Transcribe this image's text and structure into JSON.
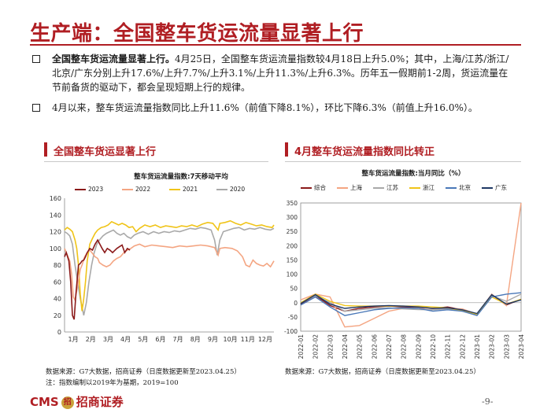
{
  "title": "生产端：全国整车货运流量显著上行",
  "bullets": [
    {
      "bold": "全国整车货运流量显著上行。",
      "text": "4月25日，全国整车货运流量指数较4月18日上升5.0%；其中，上海/江苏/浙江/北京/广东分别上升17.6%/上升7.7%/上升3.1%/上升11.3%/上升6.3%。历年五一假期前1-2周，货运流量在节前备货的驱动下，都会呈现短期上行的规律。"
    },
    {
      "bold": "",
      "text": "4月以来，整车货运流量指数同比上升11.6%（前值下降8.1%），环比下降6.3%（前值上升16.0%）。"
    }
  ],
  "left_panel": {
    "header": "全国整车货运显著上行",
    "source": "数据来源：G7大数据，招商证券（日度数据更新至2023.04.25）",
    "note": "注：指数编制以2019年为基期，2019=100"
  },
  "right_panel": {
    "header": "4月整车货运流量指数同比转正",
    "source": "数据来源：G7大数据，招商证券（日度数据更新至2023.04.25）"
  },
  "colors": {
    "accent": "#b01e23",
    "logo_gold": "#c9a13a"
  },
  "chart_data": [
    {
      "type": "line",
      "title": "整车货运流量指数:7天移动平均",
      "x_labels": [
        "1月",
        "2月",
        "3月",
        "4月",
        "5月",
        "6月",
        "7月",
        "8月",
        "9月",
        "10月",
        "11月",
        "12月"
      ],
      "ylim": [
        0,
        160
      ],
      "yticks": [
        0,
        20,
        40,
        60,
        80,
        100,
        120,
        140,
        160
      ],
      "series": [
        {
          "name": "2023",
          "color": "#8b1a1a",
          "values": [
            [
              0.0,
              90
            ],
            [
              0.1,
              95
            ],
            [
              0.25,
              85
            ],
            [
              0.35,
              60
            ],
            [
              0.45,
              20
            ],
            [
              0.55,
              15
            ],
            [
              0.65,
              45
            ],
            [
              0.8,
              80
            ],
            [
              0.9,
              82
            ],
            [
              1.0,
              85
            ],
            [
              1.1,
              86
            ],
            [
              1.2,
              90
            ],
            [
              1.3,
              95
            ],
            [
              1.45,
              100
            ],
            [
              1.6,
              98
            ],
            [
              1.75,
              105
            ],
            [
              1.9,
              110
            ],
            [
              2.0,
              106
            ],
            [
              2.15,
              100
            ],
            [
              2.3,
              95
            ],
            [
              2.45,
              100
            ],
            [
              2.6,
              98
            ],
            [
              2.75,
              95
            ],
            [
              2.85,
              97
            ],
            [
              3.0,
              100
            ],
            [
              3.15,
              102
            ],
            [
              3.3,
              104
            ],
            [
              3.45,
              95
            ],
            [
              3.6,
              100
            ],
            [
              3.75,
              98
            ]
          ]
        },
        {
          "name": "2022",
          "color": "#f4a582",
          "values": [
            [
              0.0,
              100
            ],
            [
              0.1,
              95
            ],
            [
              0.2,
              90
            ],
            [
              0.3,
              85
            ],
            [
              0.4,
              70
            ],
            [
              0.5,
              42
            ],
            [
              0.6,
              38
            ],
            [
              0.75,
              55
            ],
            [
              0.9,
              75
            ],
            [
              1.0,
              80
            ],
            [
              1.15,
              90
            ],
            [
              1.3,
              95
            ],
            [
              1.45,
              98
            ],
            [
              1.6,
              94
            ],
            [
              1.75,
              90
            ],
            [
              1.9,
              88
            ],
            [
              2.0,
              83
            ],
            [
              2.2,
              80
            ],
            [
              2.4,
              78
            ],
            [
              2.6,
              80
            ],
            [
              2.8,
              85
            ],
            [
              3.0,
              88
            ],
            [
              3.2,
              90
            ],
            [
              3.4,
              95
            ],
            [
              3.6,
              98
            ],
            [
              3.8,
              100
            ],
            [
              4.0,
              103
            ],
            [
              4.3,
              105
            ],
            [
              4.6,
              102
            ],
            [
              5.0,
              104
            ],
            [
              5.4,
              103
            ],
            [
              5.8,
              102
            ],
            [
              6.2,
              101
            ],
            [
              6.6,
              103
            ],
            [
              7.0,
              102
            ],
            [
              7.4,
              103
            ],
            [
              7.8,
              104
            ],
            [
              8.2,
              103
            ],
            [
              8.6,
              101
            ],
            [
              8.8,
              92
            ],
            [
              8.9,
              100
            ],
            [
              9.2,
              101
            ],
            [
              9.6,
              100
            ],
            [
              9.9,
              97
            ],
            [
              10.2,
              90
            ],
            [
              10.4,
              80
            ],
            [
              10.6,
              78
            ],
            [
              10.8,
              86
            ],
            [
              11.0,
              82
            ],
            [
              11.2,
              80
            ],
            [
              11.4,
              79
            ],
            [
              11.6,
              82
            ],
            [
              11.8,
              78
            ],
            [
              12.0,
              85
            ]
          ]
        },
        {
          "name": "2021",
          "color": "#f0c419",
          "values": [
            [
              0.0,
              122
            ],
            [
              0.15,
              125
            ],
            [
              0.3,
              123
            ],
            [
              0.45,
              120
            ],
            [
              0.6,
              110
            ],
            [
              0.7,
              100
            ],
            [
              0.8,
              80
            ],
            [
              0.9,
              45
            ],
            [
              1.0,
              25
            ],
            [
              1.1,
              40
            ],
            [
              1.2,
              60
            ],
            [
              1.3,
              85
            ],
            [
              1.45,
              105
            ],
            [
              1.6,
              112
            ],
            [
              1.75,
              118
            ],
            [
              1.9,
              122
            ],
            [
              2.1,
              125
            ],
            [
              2.3,
              126
            ],
            [
              2.5,
              128
            ],
            [
              2.7,
              132
            ],
            [
              2.9,
              130
            ],
            [
              3.1,
              128
            ],
            [
              3.3,
              130
            ],
            [
              3.5,
              128
            ],
            [
              3.7,
              125
            ],
            [
              3.9,
              126
            ],
            [
              4.1,
              120
            ],
            [
              4.3,
              124
            ],
            [
              4.6,
              128
            ],
            [
              4.9,
              126
            ],
            [
              5.2,
              128
            ],
            [
              5.5,
              125
            ],
            [
              5.8,
              127
            ],
            [
              6.1,
              126
            ],
            [
              6.4,
              125
            ],
            [
              6.7,
              127
            ],
            [
              7.0,
              126
            ],
            [
              7.3,
              128
            ],
            [
              7.6,
              126
            ],
            [
              7.9,
              129
            ],
            [
              8.2,
              131
            ],
            [
              8.5,
              130
            ],
            [
              8.8,
              122
            ],
            [
              8.9,
              130
            ],
            [
              9.2,
              131
            ],
            [
              9.5,
              133
            ],
            [
              9.8,
              130
            ],
            [
              10.1,
              128
            ],
            [
              10.4,
              131
            ],
            [
              10.7,
              129
            ],
            [
              11.0,
              127
            ],
            [
              11.3,
              128
            ],
            [
              11.6,
              126
            ],
            [
              11.9,
              125
            ],
            [
              12.0,
              128
            ]
          ]
        },
        {
          "name": "2020",
          "color": "#a9a9a9",
          "values": [
            [
              0.0,
              120
            ],
            [
              0.15,
              118
            ],
            [
              0.3,
              115
            ],
            [
              0.45,
              105
            ],
            [
              0.6,
              80
            ],
            [
              0.75,
              60
            ],
            [
              0.9,
              40
            ],
            [
              1.0,
              30
            ],
            [
              1.1,
              20
            ],
            [
              1.25,
              35
            ],
            [
              1.4,
              60
            ],
            [
              1.55,
              80
            ],
            [
              1.7,
              95
            ],
            [
              1.85,
              105
            ],
            [
              2.0,
              110
            ],
            [
              2.2,
              115
            ],
            [
              2.4,
              118
            ],
            [
              2.6,
              120
            ],
            [
              2.8,
              122
            ],
            [
              3.0,
              118
            ],
            [
              3.2,
              116
            ],
            [
              3.4,
              118
            ],
            [
              3.6,
              114
            ],
            [
              3.8,
              112
            ],
            [
              4.0,
              116
            ],
            [
              4.2,
              118
            ],
            [
              4.5,
              120
            ],
            [
              4.8,
              117
            ],
            [
              5.1,
              120
            ],
            [
              5.4,
              118
            ],
            [
              5.7,
              120
            ],
            [
              6.0,
              119
            ],
            [
              6.3,
              121
            ],
            [
              6.6,
              120
            ],
            [
              6.9,
              122
            ],
            [
              7.2,
              124
            ],
            [
              7.5,
              123
            ],
            [
              7.8,
              125
            ],
            [
              8.1,
              124
            ],
            [
              8.4,
              122
            ],
            [
              8.6,
              110
            ],
            [
              8.75,
              92
            ],
            [
              8.9,
              110
            ],
            [
              9.1,
              120
            ],
            [
              9.4,
              122
            ],
            [
              9.7,
              124
            ],
            [
              10.0,
              125
            ],
            [
              10.3,
              122
            ],
            [
              10.6,
              124
            ],
            [
              10.9,
              123
            ],
            [
              11.2,
              125
            ],
            [
              11.5,
              123
            ],
            [
              11.8,
              122
            ],
            [
              12.0,
              124
            ]
          ]
        }
      ]
    },
    {
      "type": "line",
      "title": "整车货运流量指数:当月同比（%）",
      "categories": [
        "2022-01",
        "2022-02",
        "2022-03",
        "2022-04",
        "2022-05",
        "2022-06",
        "2022-07",
        "2022-08",
        "2022-09",
        "2022-10",
        "2022-11",
        "2022-12",
        "2023-01",
        "2023-02",
        "2023-03",
        "2023-04"
      ],
      "ylim": [
        -100,
        350
      ],
      "yticks": [
        -100,
        -50,
        0,
        50,
        100,
        150,
        200,
        250,
        300,
        350
      ],
      "series": [
        {
          "name": "综合",
          "color": "#8b1a1a",
          "values": [
            -5,
            25,
            -10,
            -30,
            -20,
            -15,
            -12,
            -15,
            -18,
            -20,
            -15,
            -25,
            -40,
            28,
            -8,
            12
          ]
        },
        {
          "name": "上海",
          "color": "#f4a582",
          "values": [
            10,
            30,
            20,
            -85,
            -80,
            -55,
            -30,
            -20,
            -18,
            -20,
            -20,
            -22,
            -40,
            30,
            -10,
            350
          ]
        },
        {
          "name": "江苏",
          "color": "#a9a9a9",
          "values": [
            -2,
            25,
            0,
            -30,
            -25,
            -20,
            -18,
            -22,
            -24,
            -25,
            -22,
            -30,
            -42,
            25,
            5,
            30
          ]
        },
        {
          "name": "浙江",
          "color": "#f0c419",
          "values": [
            0,
            30,
            5,
            -10,
            -12,
            -12,
            -12,
            -12,
            -12,
            -15,
            -18,
            -28,
            -40,
            20,
            -5,
            12
          ]
        },
        {
          "name": "北京",
          "color": "#4a78b8",
          "values": [
            -8,
            20,
            -15,
            -45,
            -35,
            -25,
            -20,
            -18,
            -20,
            -30,
            -25,
            -30,
            -45,
            20,
            30,
            35
          ]
        },
        {
          "name": "广东",
          "color": "#1f3864",
          "values": [
            -3,
            28,
            -5,
            -20,
            -15,
            -12,
            -10,
            -12,
            -15,
            -20,
            -18,
            -25,
            -38,
            28,
            -5,
            10
          ]
        }
      ]
    }
  ],
  "footer": {
    "logo_text": "CMS",
    "logo_mark": "招",
    "company": "招商证券",
    "page": "-9-"
  }
}
